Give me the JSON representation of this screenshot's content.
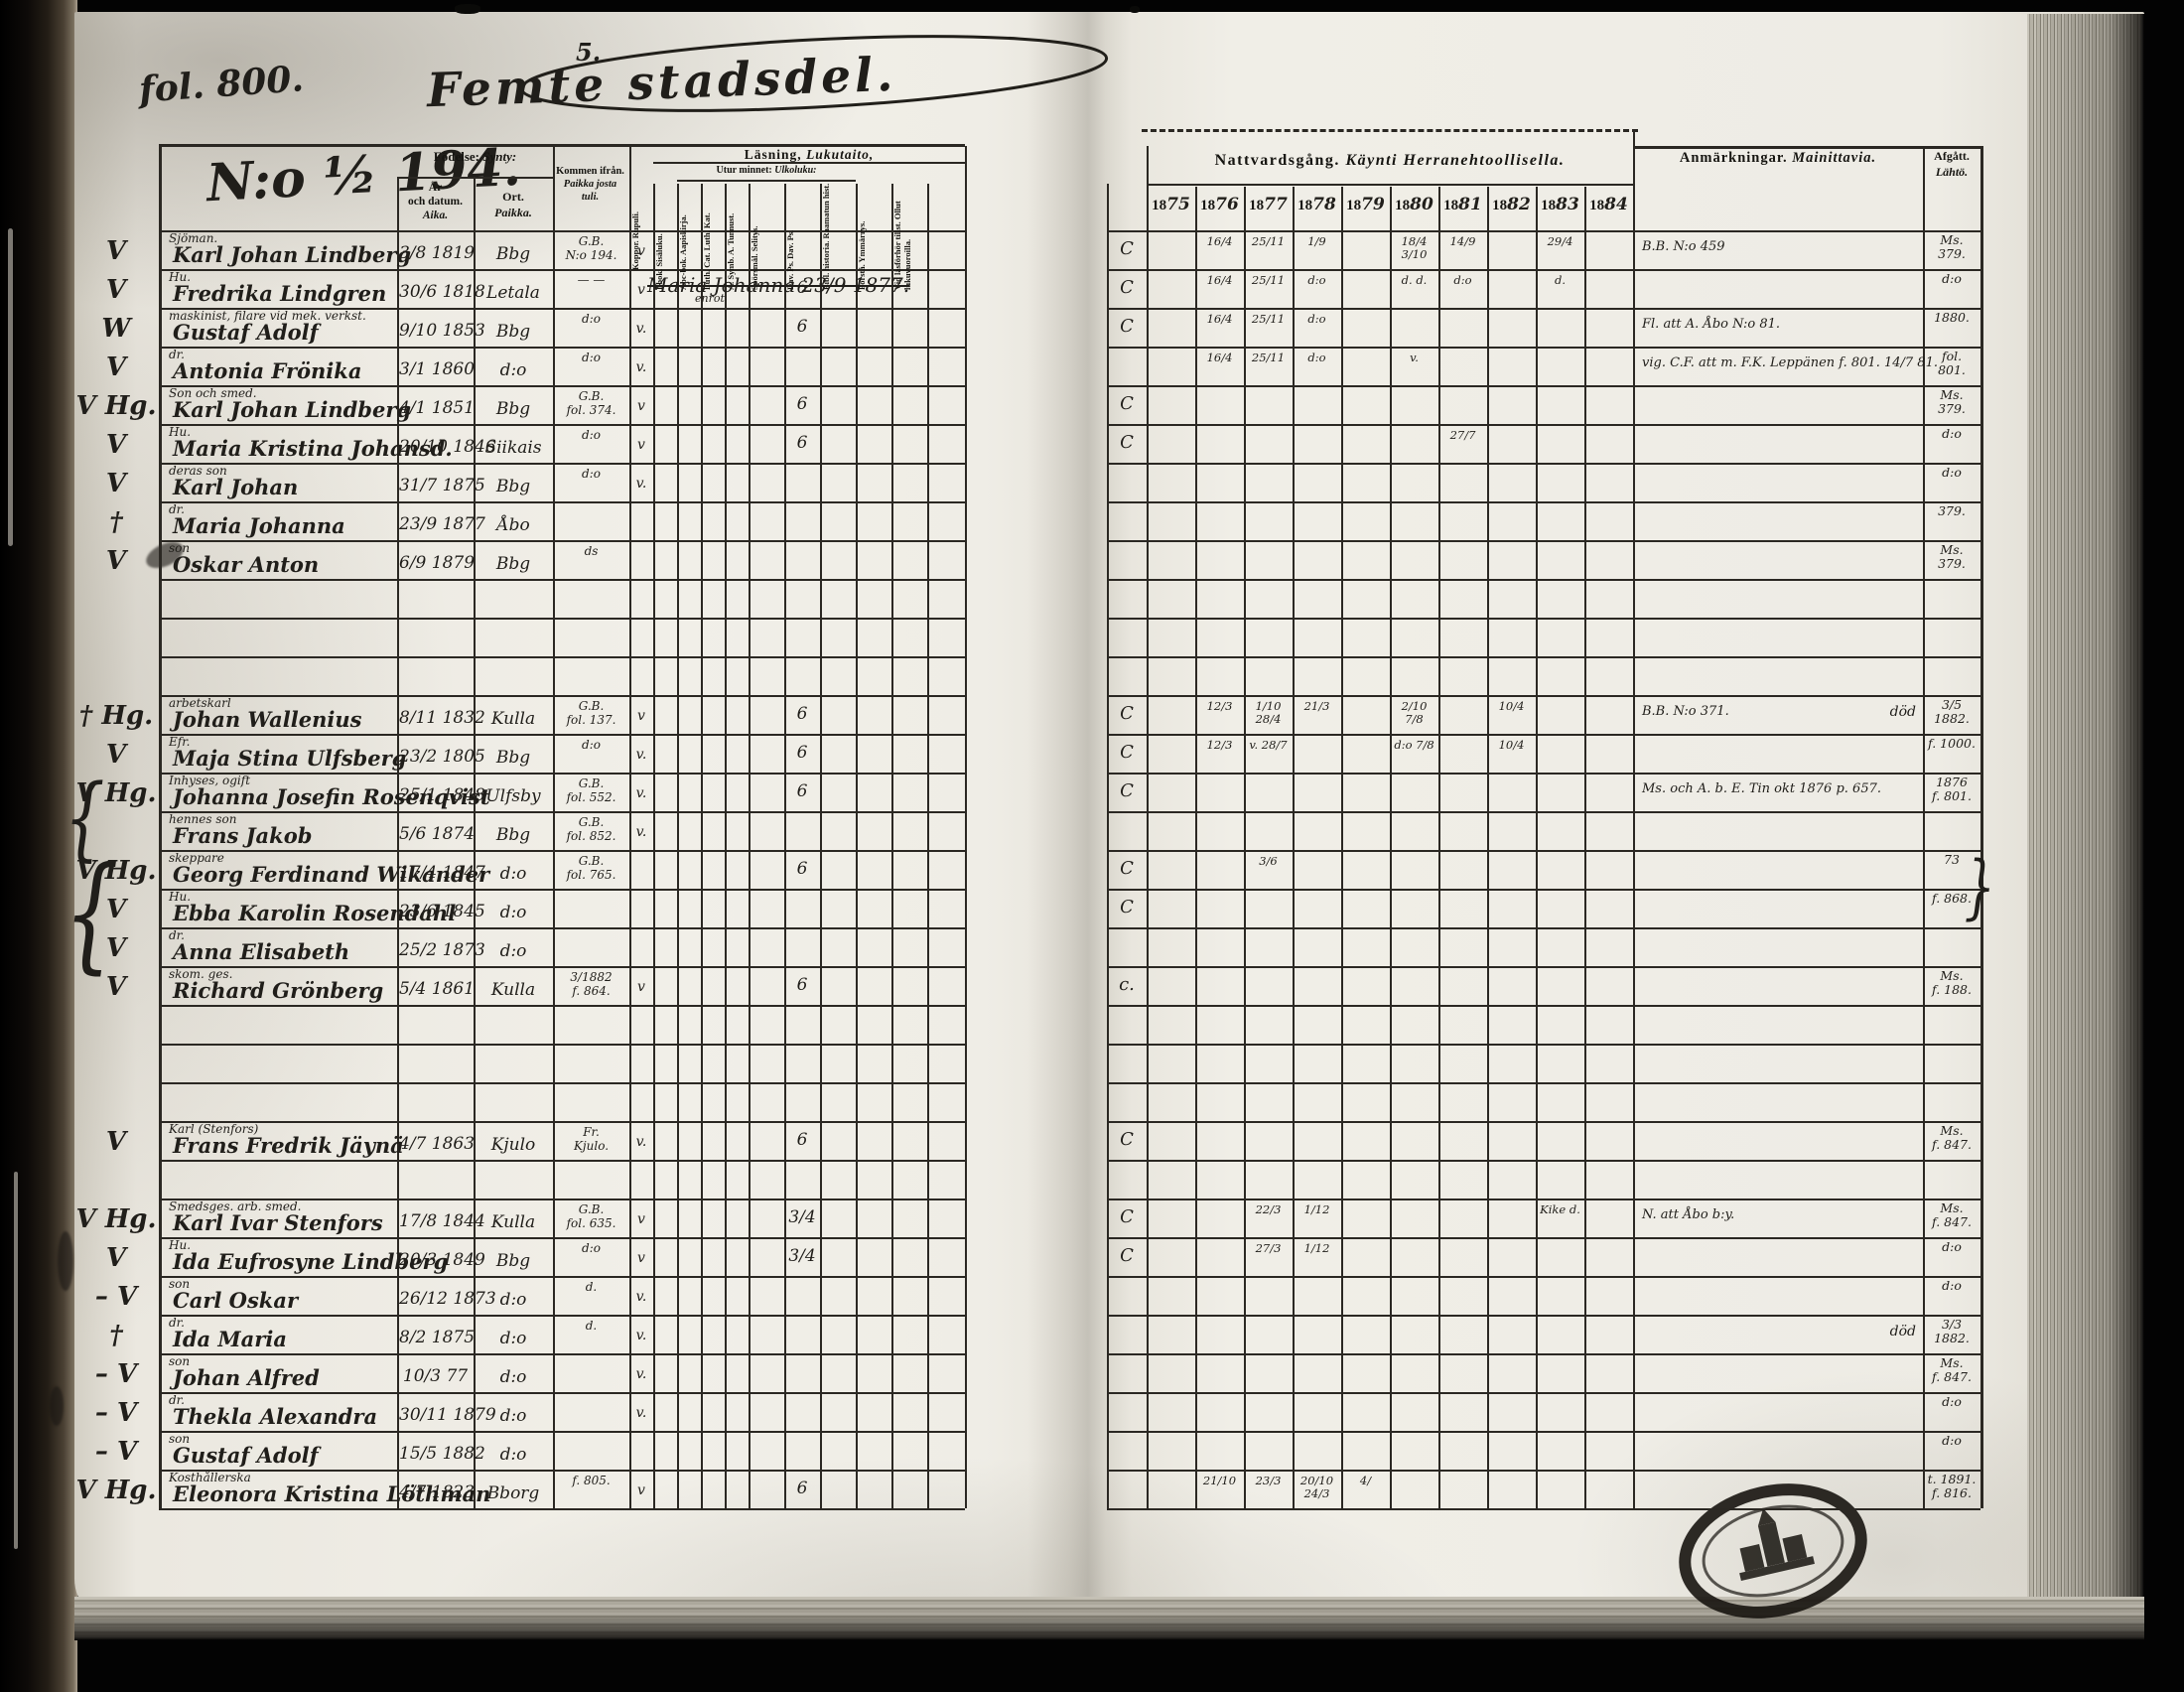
{
  "page": {
    "folio": "fol. 800.",
    "page_note": "5.",
    "district_title": "Femte stadsdel.",
    "entry_number": "N:o ½ 194."
  },
  "table": {
    "headers": {
      "birth": {
        "sv": "Födelse:",
        "fi": "Synty:"
      },
      "birth_date": {
        "sv": "År\noch datum.",
        "fi": "Aika."
      },
      "birth_place": {
        "sv": "Ort.",
        "fi": "Paikka."
      },
      "arrived_from": {
        "sv": "Kommen ifrån.",
        "fi": "Paikka josta\ntuli."
      },
      "vaccination": "Koppor. Rupuli.",
      "reading": {
        "sv": "Läsning,",
        "fi": "Lukutaito,"
      },
      "memory": {
        "sv": "Utur minnet:",
        "fi": "Ulkoluku:"
      },
      "reading_columns": [
        "I bok. Sisäluku.",
        "Abc-bok. Aapiskirja.",
        "Luth. Cat. Luth. Kat.",
        "A. Symb. A. Tunnust.",
        "Spörsmål. Selitys.",
        "Dav. Ps. Dav. Ps.",
        "Bibl. historia. Raamatun hist.",
        "Förstå. Ymmärrys.",
        "Vid läsförhör tillst. Ollut lukuvuoroilla."
      ],
      "communion": {
        "sv": "Nattvardsgång.",
        "fi": "Käynti Herranehtoollisella."
      },
      "years": [
        "1875",
        "1876",
        "1877",
        "1878",
        "1879",
        "1880",
        "1881",
        "1882",
        "1883",
        "1884"
      ],
      "remarks": {
        "sv": "Anmärkningar.",
        "fi": "Mainittavia."
      },
      "departed": {
        "sv": "Afgått.",
        "fi": "Lähtö."
      }
    },
    "rows": [
      {
        "m": "V",
        "occ": "Sjöman.",
        "name": "Karl Johan Lindberg",
        "date": "3/8 1819",
        "place": "Bbg",
        "from": "G.B.\nN:o 194.",
        "vacc": "v",
        "c": "C",
        "comm": {
          "1876": "16/4",
          "1877": "25/11",
          "1878": "1/9",
          "1880": "18/4 3/10",
          "1881": "14/9",
          "1883": "29/4"
        },
        "rem": "B.B. N:o 459",
        "dep": "Ms.\n379."
      },
      {
        "m": "V",
        "occ": "Hu.",
        "name": "Fredrika Lindgren",
        "date": "30/6 1818",
        "place": "Letala",
        "from": "— —",
        "vacc": "v",
        "read": "6",
        "c": "C",
        "comm": {
          "1876": "16/4",
          "1877": "25/11",
          "1878": "d:o",
          "1880": "d. d.",
          "1881": "d:o",
          "1883": "d."
        },
        "dep": "d:o",
        "overlay": "Maria Johanna 23/9 1877.",
        "overlay_sub": "enrot"
      },
      {
        "m": "W",
        "occ": "maskinist, filare vid mek. verkst.",
        "name": "Gustaf Adolf",
        "date": "9/10 1853",
        "place": "Bbg",
        "from": "d:o",
        "vacc": "v.",
        "read": "6",
        "c": "C",
        "comm": {
          "1876": "16/4",
          "1877": "25/11",
          "1878": "d:o"
        },
        "rem": "Fl. att A. Åbo N:o 81.",
        "dep": "1880."
      },
      {
        "m": "V",
        "occ": "dr.",
        "name": "Antonia Frönika",
        "date": "3/1 1860",
        "place": "d:o",
        "from": "d:o",
        "vacc": "v.",
        "comm": {
          "1876": "16/4",
          "1877": "25/11",
          "1878": "d:o",
          "1880": "v."
        },
        "rem": "vig. C.F. att m. F.K. Leppänen f. 801. 14/7 81.",
        "dep": "fol.\n801."
      },
      {
        "m": "V Hg.",
        "occ": "Son och smed.",
        "name": "Karl Johan Lindberg",
        "date": "4/1 1851",
        "place": "Bbg",
        "from": "G.B.\nfol. 374.",
        "vacc": "v",
        "read": "6",
        "c": "C",
        "comm": {},
        "dep": "Ms.\n379."
      },
      {
        "m": "V",
        "occ": "Hu.",
        "name": "Maria Kristina Johansd.",
        "date": "20/10 1846",
        "place": "Siikais",
        "from": "d:o",
        "vacc": "v",
        "read": "6",
        "c": "C",
        "comm": {
          "1881": "27/7"
        },
        "dep": "d:o"
      },
      {
        "m": "V",
        "occ": "deras son",
        "name": "Karl Johan",
        "date": "31/7 1875",
        "place": "Bbg",
        "from": "d:o",
        "vacc": "v.",
        "dep": "d:o"
      },
      {
        "m": "†",
        "occ": "dr.",
        "name": "Maria Johanna",
        "date": "23/9 1877",
        "place": "Åbo",
        "dep": "379."
      },
      {
        "m": "V",
        "occ": "son",
        "name": "Oskar Anton",
        "date": "6/9 1879",
        "place": "Bbg",
        "from": "ds",
        "dep": "Ms.\n379."
      },
      {},
      {},
      {},
      {
        "m": "† Hg.",
        "occ": "arbetskarl",
        "name": "Johan Wallenius",
        "date": "8/11 1832",
        "place": "Kulla",
        "from": "G.B.\nfol. 137.",
        "vacc": "v",
        "read": "6",
        "c": "C",
        "comm": {
          "1876": "12/3",
          "1877": "1/10 28/4",
          "1878": "21/3",
          "1880": "2/10 7/8",
          "1882": "10/4"
        },
        "rem": "B.B. N:o 371.",
        "rem_r": "död",
        "dep": "3/5\n1882."
      },
      {
        "m": "V",
        "occ": "Efr.",
        "name": "Maja Stina Ulfsberg",
        "date": "23/2 1805",
        "place": "Bbg",
        "from": "d:o",
        "vacc": "v.",
        "read": "6",
        "c": "C",
        "comm": {
          "1876": "12/3",
          "1877": "v. 28/7",
          "1880": "d:o 7/8",
          "1882": "10/4"
        },
        "dep": "f. 1000."
      },
      {
        "m": "V Hg.",
        "occ": "Inhyses, ogift",
        "name": "Johanna Josefin Rosenqvist",
        "date": "25/1 1848",
        "place": "Ulfsby",
        "from": "G.B.\nfol. 552.",
        "vacc": "v.",
        "read": "6",
        "c": "C",
        "rem": "Ms. och A. b. E. Tin okt 1876 p. 657.",
        "dep": "1876\nf. 801."
      },
      {
        "occ": "hennes son",
        "name": "Frans Jakob",
        "date": "5/6 1874",
        "place": "Bbg",
        "from": "G.B.\nfol. 852.",
        "vacc": "v."
      },
      {
        "m": "V Hg.",
        "occ": "skeppare",
        "name": "Georg Ferdinand Wikander",
        "date": "17/4 1847",
        "place": "d:o",
        "from": "G.B.\nfol. 765.",
        "read": "6",
        "c": "C",
        "comm": {
          "1877": "3/6"
        },
        "dep": "73"
      },
      {
        "m": "V",
        "occ": "Hu.",
        "name": "Ebba Karolin Rosendahl",
        "date": "23/6 1845",
        "place": "d:o",
        "c": "C",
        "dep": "f. 868."
      },
      {
        "m": "V",
        "occ": "dr.",
        "name": "Anna Elisabeth",
        "date": "25/2 1873",
        "place": "d:o"
      },
      {
        "m": "V",
        "occ": "skom. ges.",
        "name": "Richard Grönberg",
        "date": "5/4 1861",
        "place": "Kulla",
        "from": "3/1882\nf. 864.",
        "vacc": "v",
        "read": "6",
        "c": "c.",
        "dep": "Ms.\nf. 188."
      },
      {},
      {},
      {},
      {
        "m": "V",
        "occ": "Karl (Stenfors)",
        "name": "Frans Fredrik Jäynä",
        "date": "4/7 1863",
        "place": "Kjulo",
        "from": "Fr.\nKjulo.",
        "vacc": "v.",
        "read": "6",
        "c": "C",
        "dep": "Ms.\nf. 847."
      },
      {},
      {
        "m": "V Hg.",
        "occ": "Smedsges. arb. smed.",
        "name": "Karl Ivar Stenfors",
        "date": "17/8 1844",
        "place": "Kulla",
        "from": "G.B.\nfol. 635.",
        "vacc": "v",
        "read": "3/4",
        "c": "C",
        "comm": {
          "1877": "22/3",
          "1878": "1/12",
          "1883": "Kike d."
        },
        "rem": "N. att Åbo b:y.",
        "dep": "Ms.\nf. 847."
      },
      {
        "m": "V",
        "occ": "Hu.",
        "name": "Ida Eufrosyne Lindberg",
        "date": "20/3 1849",
        "place": "Bbg",
        "from": "d:o",
        "vacc": "v",
        "read": "3/4",
        "c": "C",
        "comm": {
          "1877": "27/3",
          "1878": "1/12"
        },
        "dep": "d:o"
      },
      {
        "m": "– V",
        "occ": "son",
        "name": "Carl Oskar",
        "date": "26/12 1873",
        "place": "d:o",
        "from": "d.",
        "vacc": "v.",
        "dep": "d:o"
      },
      {
        "m": "†",
        "occ": "dr.",
        "name": "Ida Maria",
        "date": "8/2 1875",
        "place": "d:o",
        "from": "d.",
        "vacc": "v.",
        "rem_r": "död",
        "dep": "3/3\n1882."
      },
      {
        "m": "– V",
        "occ": "son",
        "name": "Johan Alfred",
        "date": "10/3 77",
        "place": "d:o",
        "vacc": "v.",
        "dep": "Ms.\nf. 847."
      },
      {
        "m": "– V",
        "occ": "dr.",
        "name": "Thekla Alexandra",
        "date": "30/11 1879",
        "place": "d:o",
        "vacc": "v.",
        "dep": "d:o"
      },
      {
        "m": "– V",
        "occ": "son",
        "name": "Gustaf Adolf",
        "date": "15/5 1882",
        "place": "d:o",
        "dep": "d:o"
      },
      {
        "m": "V Hg.",
        "occ": "Kosthållerska",
        "name": "Eleonora Kristina Löthman",
        "date": "4/7 1823",
        "place": "Bborg",
        "from": "f. 805.",
        "vacc": "v",
        "read": "6",
        "comm": {
          "1876": "21/10",
          "1877": "23/3",
          "1878": "20/10 24/3",
          "1879": "4/"
        },
        "dep": "t. 1891.\nf. 816."
      }
    ],
    "margin_braces": [
      "{",
      "{"
    ],
    "departed_brace": "}"
  }
}
